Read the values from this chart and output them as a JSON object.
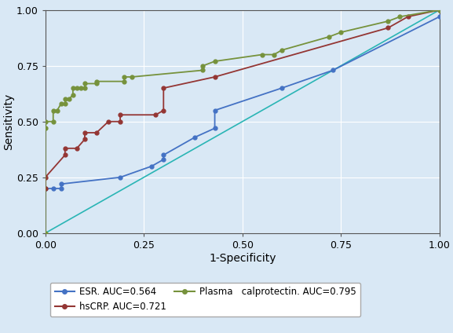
{
  "background_color": "#d9e8f5",
  "plot_bg_color": "#d9e8f5",
  "xlabel": "1-Specificity",
  "ylabel": "Sensitivity",
  "xlim": [
    0,
    1
  ],
  "ylim": [
    0,
    1
  ],
  "xticks": [
    0.0,
    0.25,
    0.5,
    0.75,
    1.0
  ],
  "yticks": [
    0.0,
    0.25,
    0.5,
    0.75,
    1.0
  ],
  "reference_color": "#2ab5b5",
  "esr": {
    "x": [
      0.0,
      0.02,
      0.04,
      0.04,
      0.19,
      0.27,
      0.3,
      0.3,
      0.38,
      0.43,
      0.43,
      0.6,
      0.73,
      1.0
    ],
    "y": [
      0.2,
      0.2,
      0.2,
      0.22,
      0.25,
      0.3,
      0.33,
      0.35,
      0.43,
      0.47,
      0.55,
      0.65,
      0.73,
      0.97
    ],
    "color": "#4472c4",
    "label": "ESR. AUC=0.564"
  },
  "hscrp": {
    "x": [
      0.0,
      0.0,
      0.05,
      0.05,
      0.08,
      0.1,
      0.1,
      0.13,
      0.16,
      0.19,
      0.19,
      0.28,
      0.3,
      0.3,
      0.43,
      0.87,
      0.92,
      1.0
    ],
    "y": [
      0.2,
      0.25,
      0.35,
      0.38,
      0.38,
      0.42,
      0.45,
      0.45,
      0.5,
      0.5,
      0.53,
      0.53,
      0.55,
      0.65,
      0.7,
      0.92,
      0.97,
      1.0
    ],
    "color": "#943634",
    "label": "hsCRP. AUC=0.721"
  },
  "calprotectin": {
    "x": [
      0.0,
      0.0,
      0.0,
      0.02,
      0.02,
      0.03,
      0.04,
      0.05,
      0.05,
      0.06,
      0.07,
      0.07,
      0.08,
      0.09,
      0.1,
      0.1,
      0.13,
      0.13,
      0.2,
      0.2,
      0.22,
      0.4,
      0.4,
      0.43,
      0.55,
      0.58,
      0.6,
      0.72,
      0.75,
      0.87,
      0.9,
      1.0
    ],
    "y": [
      0.0,
      0.47,
      0.5,
      0.5,
      0.55,
      0.55,
      0.58,
      0.58,
      0.6,
      0.6,
      0.62,
      0.65,
      0.65,
      0.65,
      0.65,
      0.67,
      0.67,
      0.68,
      0.68,
      0.7,
      0.7,
      0.73,
      0.75,
      0.77,
      0.8,
      0.8,
      0.82,
      0.88,
      0.9,
      0.95,
      0.97,
      1.0
    ],
    "color": "#76923c",
    "label": "Plasma   calprotectin. AUC=0.795"
  },
  "legend_fontsize": 8.5,
  "axis_fontsize": 10,
  "tick_fontsize": 9
}
